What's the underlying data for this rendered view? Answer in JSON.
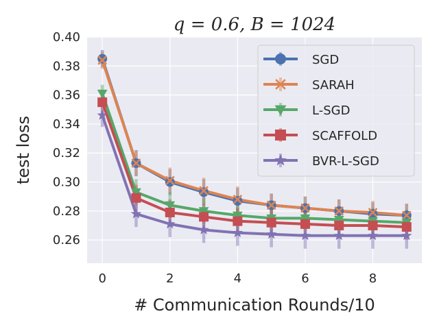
{
  "chart_data": {
    "type": "line",
    "title": "q = 0.6, B = 1024",
    "xlabel": "# Communication Rounds/10",
    "ylabel": "test loss",
    "xlim": [
      -0.45,
      9.45
    ],
    "ylim": [
      0.244,
      0.4
    ],
    "xticks": [
      0,
      2,
      4,
      6,
      8
    ],
    "xtick_labels": [
      "0",
      "2",
      "4",
      "6",
      "8"
    ],
    "yticks": [
      0.26,
      0.28,
      0.3,
      0.32,
      0.34,
      0.36,
      0.38,
      0.4
    ],
    "ytick_labels": [
      "0.26",
      "0.28",
      "0.30",
      "0.32",
      "0.34",
      "0.36",
      "0.38",
      "0.40"
    ],
    "grid": true,
    "legend_position": "top-right",
    "x": [
      0,
      1,
      2,
      3,
      4,
      5,
      6,
      7,
      8,
      9
    ],
    "series": [
      {
        "name": "SGD",
        "color": "#4c72b0",
        "marker": "circle",
        "values": [
          0.385,
          0.313,
          0.3,
          0.293,
          0.287,
          0.284,
          0.282,
          0.28,
          0.278,
          0.277
        ],
        "err": [
          0.006,
          0.009,
          0.009,
          0.009,
          0.009,
          0.008,
          0.008,
          0.008,
          0.008,
          0.008
        ]
      },
      {
        "name": "SARAH",
        "color": "#dd8452",
        "marker": "x",
        "values": [
          0.384,
          0.313,
          0.301,
          0.294,
          0.288,
          0.284,
          0.282,
          0.28,
          0.279,
          0.277
        ],
        "err": [
          0.006,
          0.009,
          0.009,
          0.009,
          0.009,
          0.008,
          0.008,
          0.008,
          0.008,
          0.008
        ]
      },
      {
        "name": "L-SGD",
        "color": "#55a868",
        "marker": "triangle-down",
        "values": [
          0.361,
          0.293,
          0.284,
          0.28,
          0.277,
          0.275,
          0.275,
          0.274,
          0.273,
          0.272
        ],
        "err": [
          0.006,
          0.009,
          0.009,
          0.009,
          0.009,
          0.009,
          0.009,
          0.009,
          0.009,
          0.009
        ]
      },
      {
        "name": "SCAFFOLD",
        "color": "#c44e52",
        "marker": "square",
        "values": [
          0.355,
          0.289,
          0.279,
          0.276,
          0.273,
          0.272,
          0.271,
          0.27,
          0.27,
          0.269
        ],
        "err": [
          0.008,
          0.009,
          0.009,
          0.009,
          0.009,
          0.009,
          0.009,
          0.009,
          0.009,
          0.009
        ]
      },
      {
        "name": "BVR-L-SGD",
        "color": "#8172b3",
        "marker": "star",
        "values": [
          0.346,
          0.278,
          0.271,
          0.267,
          0.265,
          0.264,
          0.263,
          0.263,
          0.263,
          0.263
        ],
        "err": [
          0.008,
          0.009,
          0.009,
          0.009,
          0.009,
          0.009,
          0.009,
          0.009,
          0.009,
          0.009
        ]
      }
    ]
  }
}
